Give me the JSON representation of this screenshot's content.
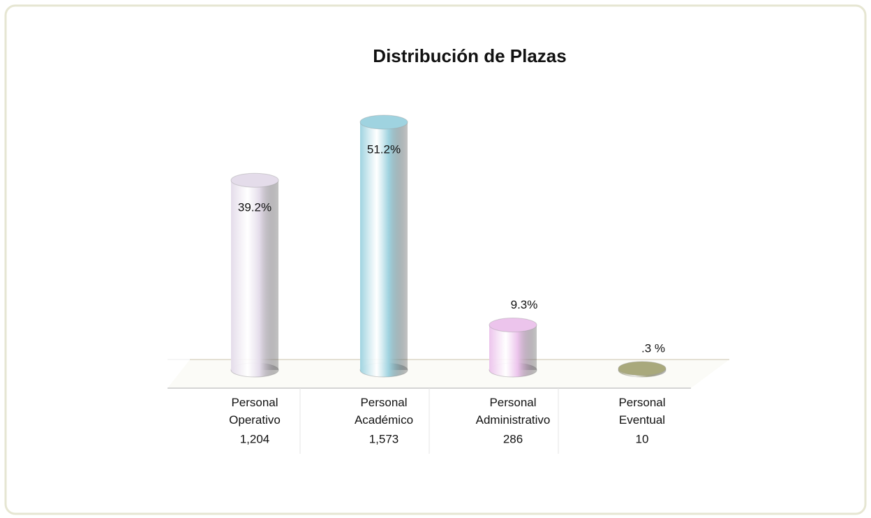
{
  "chart_data": {
    "type": "cylinder-bar",
    "title": "Distribución de Plazas",
    "categories": [
      "Personal Operativo",
      "Personal Académico",
      "Personal Administrativo",
      "Personal Eventual"
    ],
    "count_labels": [
      "1,204",
      "1,573",
      "286",
      "10"
    ],
    "values": [
      39.2,
      51.2,
      9.3,
      0.3
    ],
    "value_labels": [
      "39.2%",
      "51.2%",
      "9.3%",
      ".3 %"
    ],
    "colors": [
      "#e4dcea",
      "#9fd3e0",
      "#ecc4ec",
      "#a9a97c"
    ]
  }
}
